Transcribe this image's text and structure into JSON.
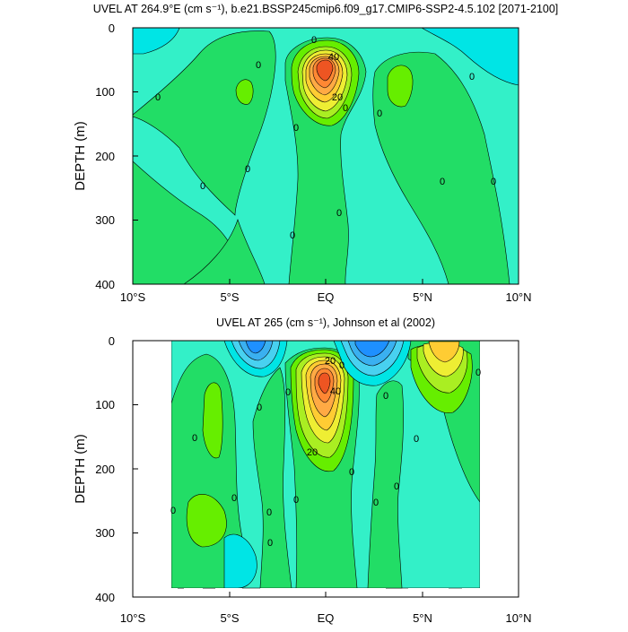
{
  "colors": {
    "c_neg30": "#1e90ff",
    "c_neg20": "#3ab0f0",
    "c_neg10": "#48d1f0",
    "c_neg0": "#00e5e5",
    "c_neg": "#33f0c8",
    "c_pos": "#22dd66",
    "c_10": "#66ee00",
    "c_20": "#aaee22",
    "c_30": "#eeee33",
    "c_40": "#ffcc33",
    "c_50": "#ffaa44",
    "c_60": "#ff8833",
    "c_70": "#ee5522"
  },
  "chart_data": [
    {
      "type": "contour",
      "title": "UVEL AT 264.9°E (cm s⁻¹), b.e21.BSSP245cmip6.f09_g17.CMIP6-SSP2-4.5.102 [2071-2100]",
      "ylabel": "DEPTH (m)",
      "xlabel": "",
      "x_ticks": [
        "10°S",
        "5°S",
        "EQ",
        "5°N",
        "10°N"
      ],
      "y_ticks": [
        "0",
        "100",
        "200",
        "300",
        "400"
      ],
      "xlim": [
        -10,
        10
      ],
      "ylim": [
        400,
        0
      ],
      "contour_interval": 10,
      "contour_labels": [
        "0",
        "40",
        "20",
        "0",
        "0",
        "0",
        "0",
        "0",
        "0",
        "0",
        "0",
        "0",
        "0",
        "0",
        "0"
      ],
      "features": [
        {
          "kind": "core",
          "lat": 0,
          "depth": 65,
          "max_value": 70
        },
        {
          "kind": "positive-patch",
          "lat": -4.5,
          "depth": 110
        },
        {
          "kind": "positive-patch",
          "lat": 4.5,
          "depth": 90
        },
        {
          "kind": "negative-surface",
          "lat": 9,
          "depth": 40
        }
      ]
    },
    {
      "type": "contour",
      "title": "UVEL AT 265 (cm s⁻¹), Johnson et al (2002)",
      "ylabel": "DEPTH (m)",
      "xlabel": "",
      "x_ticks": [
        "10°S",
        "5°S",
        "EQ",
        "5°N",
        "10°N"
      ],
      "y_ticks": [
        "0",
        "100",
        "200",
        "300",
        "400"
      ],
      "xlim": [
        -10,
        10
      ],
      "ylim": [
        400,
        0
      ],
      "data_extent": [
        -8,
        8
      ],
      "contour_interval": 10,
      "contour_labels": [
        "20",
        "40",
        "0",
        "0",
        "0",
        "0",
        "0",
        "0",
        "0",
        "0",
        "0",
        "0",
        "0",
        "0",
        "0",
        "0",
        "0",
        "20"
      ],
      "features": [
        {
          "kind": "core",
          "lat": 0,
          "depth": 75,
          "max_value": 60
        },
        {
          "kind": "positive-core",
          "lat": 6.5,
          "depth": 20,
          "max_value": 40
        },
        {
          "kind": "negative-surface",
          "lat": -3,
          "depth": 10,
          "min_value": -30
        },
        {
          "kind": "negative-surface",
          "lat": 2.5,
          "depth": 15,
          "min_value": -30
        }
      ]
    }
  ]
}
